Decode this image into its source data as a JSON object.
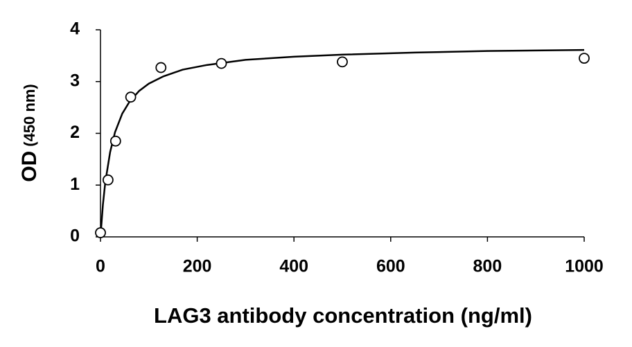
{
  "chart_data": {
    "type": "scatter",
    "xlabel": "LAG3 antibody concentration (ng/ml)",
    "ylabel": [
      "OD",
      "(450 nm)"
    ],
    "x": [
      0,
      15.6,
      31.25,
      62.5,
      125,
      250,
      500,
      1000
    ],
    "values": [
      0.08,
      1.1,
      1.85,
      2.7,
      3.27,
      3.35,
      3.38,
      3.45
    ],
    "color": "#000000",
    "fit": {
      "x": [
        0,
        5,
        10,
        20,
        30,
        45,
        60,
        80,
        100,
        130,
        170,
        220,
        300,
        400,
        500,
        650,
        800,
        1000
      ],
      "y": [
        0,
        0.62,
        1.06,
        1.64,
        2.02,
        2.38,
        2.61,
        2.82,
        2.96,
        3.1,
        3.23,
        3.32,
        3.42,
        3.48,
        3.52,
        3.56,
        3.59,
        3.61
      ]
    },
    "xlim": [
      0,
      1000
    ],
    "xticks": [
      0,
      200,
      400,
      600,
      800,
      1000
    ],
    "ylim": [
      0,
      4
    ],
    "yticks": [
      0,
      1,
      2,
      3,
      4
    ],
    "grid": false
  }
}
